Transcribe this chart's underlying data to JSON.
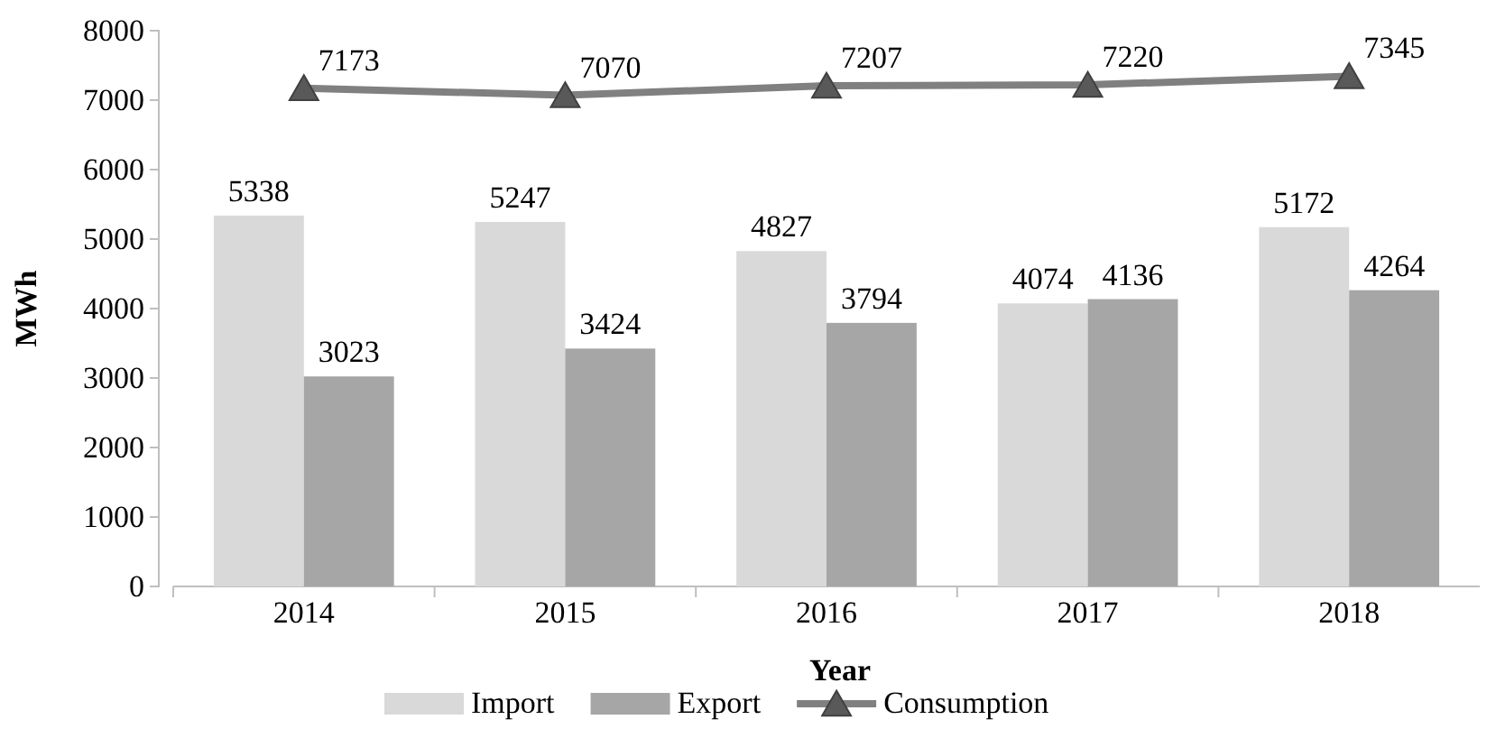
{
  "chart_data": {
    "type": "bar",
    "xlabel": "Year",
    "ylabel": "MWh",
    "categories": [
      "2014",
      "2015",
      "2016",
      "2017",
      "2018"
    ],
    "series": [
      {
        "name": "Import",
        "color": "#d9d9d9",
        "values": [
          5338,
          5247,
          4827,
          4074,
          5172
        ]
      },
      {
        "name": "Export",
        "color": "#a6a6a6",
        "values": [
          3023,
          3424,
          3794,
          4136,
          4264
        ]
      },
      {
        "name": "Consumption",
        "type": "line",
        "color": "#808080",
        "values": [
          7173,
          7070,
          7207,
          7220,
          7345
        ]
      }
    ],
    "ylim": [
      0,
      8000
    ],
    "yticks": [
      0,
      1000,
      2000,
      3000,
      4000,
      5000,
      6000,
      7000,
      8000
    ],
    "grid": false,
    "legend": "bottom",
    "marker": "triangle",
    "line_style": "solid",
    "data_labels": true
  }
}
